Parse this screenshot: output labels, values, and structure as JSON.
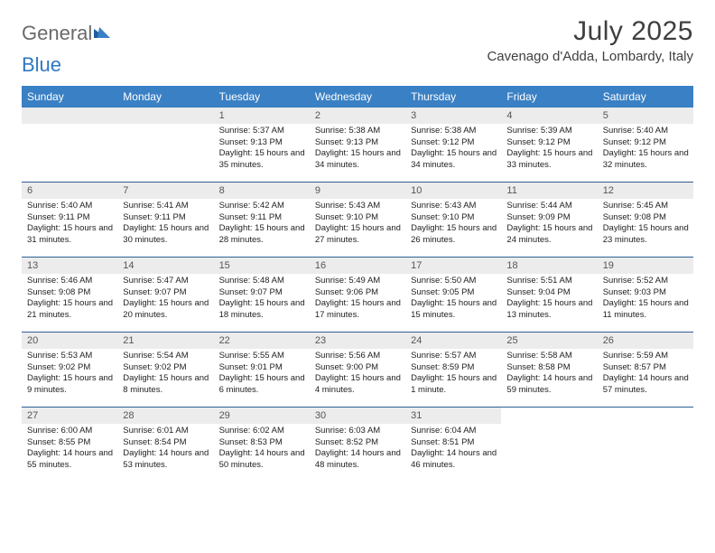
{
  "logo": {
    "text1": "General",
    "text2": "Blue"
  },
  "title": "July 2025",
  "location": "Cavenago d'Adda, Lombardy, Italy",
  "colors": {
    "header_bg": "#3a80c4",
    "header_text": "#ffffff",
    "daynum_bg": "#ececec",
    "row_border": "#2e5f93",
    "logo_blue": "#2f78c1",
    "logo_gray": "#6a6a6a",
    "body_text": "#222222",
    "title_text": "#3f3f3f",
    "page_bg": "#ffffff"
  },
  "typography": {
    "title_fontsize": 30,
    "location_fontsize": 15,
    "header_fontsize": 12,
    "daynum_fontsize": 11,
    "body_fontsize": 9.5,
    "logo_fontsize": 22
  },
  "day_headers": [
    "Sunday",
    "Monday",
    "Tuesday",
    "Wednesday",
    "Thursday",
    "Friday",
    "Saturday"
  ],
  "weeks": [
    [
      null,
      null,
      {
        "n": "1",
        "sunrise": "Sunrise: 5:37 AM",
        "sunset": "Sunset: 9:13 PM",
        "daylight": "Daylight: 15 hours and 35 minutes."
      },
      {
        "n": "2",
        "sunrise": "Sunrise: 5:38 AM",
        "sunset": "Sunset: 9:13 PM",
        "daylight": "Daylight: 15 hours and 34 minutes."
      },
      {
        "n": "3",
        "sunrise": "Sunrise: 5:38 AM",
        "sunset": "Sunset: 9:12 PM",
        "daylight": "Daylight: 15 hours and 34 minutes."
      },
      {
        "n": "4",
        "sunrise": "Sunrise: 5:39 AM",
        "sunset": "Sunset: 9:12 PM",
        "daylight": "Daylight: 15 hours and 33 minutes."
      },
      {
        "n": "5",
        "sunrise": "Sunrise: 5:40 AM",
        "sunset": "Sunset: 9:12 PM",
        "daylight": "Daylight: 15 hours and 32 minutes."
      }
    ],
    [
      {
        "n": "6",
        "sunrise": "Sunrise: 5:40 AM",
        "sunset": "Sunset: 9:11 PM",
        "daylight": "Daylight: 15 hours and 31 minutes."
      },
      {
        "n": "7",
        "sunrise": "Sunrise: 5:41 AM",
        "sunset": "Sunset: 9:11 PM",
        "daylight": "Daylight: 15 hours and 30 minutes."
      },
      {
        "n": "8",
        "sunrise": "Sunrise: 5:42 AM",
        "sunset": "Sunset: 9:11 PM",
        "daylight": "Daylight: 15 hours and 28 minutes."
      },
      {
        "n": "9",
        "sunrise": "Sunrise: 5:43 AM",
        "sunset": "Sunset: 9:10 PM",
        "daylight": "Daylight: 15 hours and 27 minutes."
      },
      {
        "n": "10",
        "sunrise": "Sunrise: 5:43 AM",
        "sunset": "Sunset: 9:10 PM",
        "daylight": "Daylight: 15 hours and 26 minutes."
      },
      {
        "n": "11",
        "sunrise": "Sunrise: 5:44 AM",
        "sunset": "Sunset: 9:09 PM",
        "daylight": "Daylight: 15 hours and 24 minutes."
      },
      {
        "n": "12",
        "sunrise": "Sunrise: 5:45 AM",
        "sunset": "Sunset: 9:08 PM",
        "daylight": "Daylight: 15 hours and 23 minutes."
      }
    ],
    [
      {
        "n": "13",
        "sunrise": "Sunrise: 5:46 AM",
        "sunset": "Sunset: 9:08 PM",
        "daylight": "Daylight: 15 hours and 21 minutes."
      },
      {
        "n": "14",
        "sunrise": "Sunrise: 5:47 AM",
        "sunset": "Sunset: 9:07 PM",
        "daylight": "Daylight: 15 hours and 20 minutes."
      },
      {
        "n": "15",
        "sunrise": "Sunrise: 5:48 AM",
        "sunset": "Sunset: 9:07 PM",
        "daylight": "Daylight: 15 hours and 18 minutes."
      },
      {
        "n": "16",
        "sunrise": "Sunrise: 5:49 AM",
        "sunset": "Sunset: 9:06 PM",
        "daylight": "Daylight: 15 hours and 17 minutes."
      },
      {
        "n": "17",
        "sunrise": "Sunrise: 5:50 AM",
        "sunset": "Sunset: 9:05 PM",
        "daylight": "Daylight: 15 hours and 15 minutes."
      },
      {
        "n": "18",
        "sunrise": "Sunrise: 5:51 AM",
        "sunset": "Sunset: 9:04 PM",
        "daylight": "Daylight: 15 hours and 13 minutes."
      },
      {
        "n": "19",
        "sunrise": "Sunrise: 5:52 AM",
        "sunset": "Sunset: 9:03 PM",
        "daylight": "Daylight: 15 hours and 11 minutes."
      }
    ],
    [
      {
        "n": "20",
        "sunrise": "Sunrise: 5:53 AM",
        "sunset": "Sunset: 9:02 PM",
        "daylight": "Daylight: 15 hours and 9 minutes."
      },
      {
        "n": "21",
        "sunrise": "Sunrise: 5:54 AM",
        "sunset": "Sunset: 9:02 PM",
        "daylight": "Daylight: 15 hours and 8 minutes."
      },
      {
        "n": "22",
        "sunrise": "Sunrise: 5:55 AM",
        "sunset": "Sunset: 9:01 PM",
        "daylight": "Daylight: 15 hours and 6 minutes."
      },
      {
        "n": "23",
        "sunrise": "Sunrise: 5:56 AM",
        "sunset": "Sunset: 9:00 PM",
        "daylight": "Daylight: 15 hours and 4 minutes."
      },
      {
        "n": "24",
        "sunrise": "Sunrise: 5:57 AM",
        "sunset": "Sunset: 8:59 PM",
        "daylight": "Daylight: 15 hours and 1 minute."
      },
      {
        "n": "25",
        "sunrise": "Sunrise: 5:58 AM",
        "sunset": "Sunset: 8:58 PM",
        "daylight": "Daylight: 14 hours and 59 minutes."
      },
      {
        "n": "26",
        "sunrise": "Sunrise: 5:59 AM",
        "sunset": "Sunset: 8:57 PM",
        "daylight": "Daylight: 14 hours and 57 minutes."
      }
    ],
    [
      {
        "n": "27",
        "sunrise": "Sunrise: 6:00 AM",
        "sunset": "Sunset: 8:55 PM",
        "daylight": "Daylight: 14 hours and 55 minutes."
      },
      {
        "n": "28",
        "sunrise": "Sunrise: 6:01 AM",
        "sunset": "Sunset: 8:54 PM",
        "daylight": "Daylight: 14 hours and 53 minutes."
      },
      {
        "n": "29",
        "sunrise": "Sunrise: 6:02 AM",
        "sunset": "Sunset: 8:53 PM",
        "daylight": "Daylight: 14 hours and 50 minutes."
      },
      {
        "n": "30",
        "sunrise": "Sunrise: 6:03 AM",
        "sunset": "Sunset: 8:52 PM",
        "daylight": "Daylight: 14 hours and 48 minutes."
      },
      {
        "n": "31",
        "sunrise": "Sunrise: 6:04 AM",
        "sunset": "Sunset: 8:51 PM",
        "daylight": "Daylight: 14 hours and 46 minutes."
      },
      null,
      null
    ]
  ]
}
